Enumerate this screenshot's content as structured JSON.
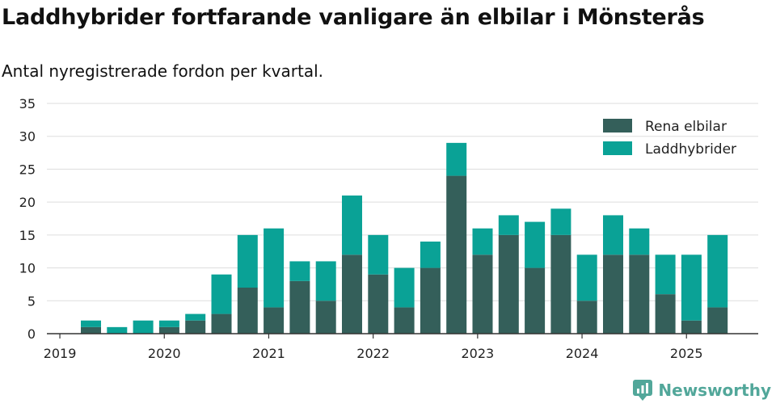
{
  "title": "Laddhybrider fortfarande vanligare än elbilar i Mönsterås",
  "subtitle": "Antal nyregistrerade fordon per kvartal.",
  "brand": {
    "name": "Newsworthy",
    "icon": "newsworthy-logo-icon"
  },
  "chart_data": {
    "type": "bar",
    "stacked": true,
    "title": "Laddhybrider fortfarande vanligare än elbilar i Mönsterås",
    "subtitle": "Antal nyregistrerade fordon per kvartal.",
    "xlabel": "",
    "ylabel": "",
    "ylim": [
      0,
      35
    ],
    "yticks": [
      0,
      5,
      10,
      15,
      20,
      25,
      30,
      35
    ],
    "grid": true,
    "legend_position": "top-right",
    "x_tick_labels": [
      "2019",
      "2020",
      "2021",
      "2022",
      "2023",
      "2024",
      "2025"
    ],
    "categories": [
      "2019 Q2",
      "2019 Q3",
      "2019 Q4",
      "2020 Q1",
      "2020 Q2",
      "2020 Q3",
      "2020 Q4",
      "2021 Q1",
      "2021 Q2",
      "2021 Q3",
      "2021 Q4",
      "2022 Q1",
      "2022 Q2",
      "2022 Q3",
      "2022 Q4",
      "2023 Q1",
      "2023 Q2",
      "2023 Q3",
      "2023 Q4",
      "2024 Q1",
      "2024 Q2",
      "2024 Q3",
      "2024 Q4",
      "2025 Q1",
      "2025 Q2"
    ],
    "series": [
      {
        "name": "Rena elbilar",
        "color": "#345f5a",
        "values": [
          1,
          0,
          0,
          1,
          2,
          3,
          7,
          4,
          8,
          5,
          12,
          9,
          4,
          10,
          24,
          12,
          15,
          10,
          15,
          5,
          12,
          12,
          6,
          2,
          4
        ]
      },
      {
        "name": "Laddhybrider",
        "color": "#0aa296",
        "values": [
          1,
          1,
          2,
          1,
          1,
          6,
          8,
          12,
          3,
          6,
          9,
          6,
          6,
          4,
          5,
          4,
          3,
          7,
          4,
          7,
          6,
          4,
          6,
          10,
          11
        ]
      }
    ]
  }
}
